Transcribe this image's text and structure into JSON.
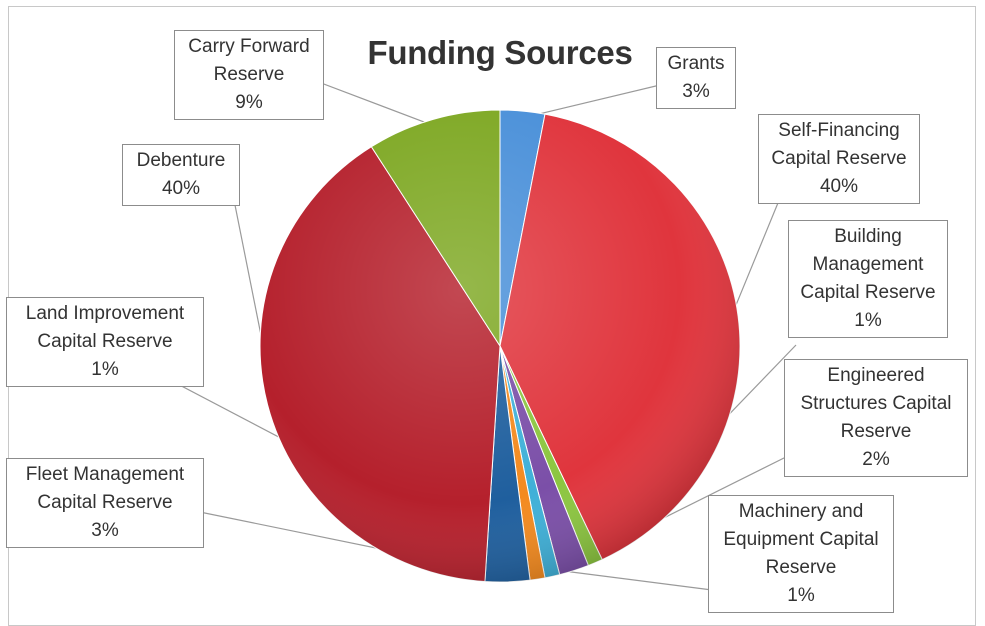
{
  "chart_data": {
    "type": "pie",
    "title": "Funding Sources",
    "slices": [
      {
        "key": "grants",
        "lines": [
          "Grants"
        ],
        "label": "3%",
        "value": 3,
        "color": "#4a90d9"
      },
      {
        "key": "self_financing",
        "lines": [
          "Self-Financing",
          "Capital Reserve"
        ],
        "label": "40%",
        "value": 40,
        "color": "#e0353d"
      },
      {
        "key": "building",
        "lines": [
          "Building",
          "Management",
          "Capital Reserve"
        ],
        "label": "1%",
        "value": 1,
        "color": "#8cc640"
      },
      {
        "key": "engineered",
        "lines": [
          "Engineered",
          "Structures Capital",
          "Reserve"
        ],
        "label": "2%",
        "value": 2,
        "color": "#7b4fa8"
      },
      {
        "key": "machinery",
        "lines": [
          "Machinery and",
          "Equipment Capital",
          "Reserve"
        ],
        "label": "1%",
        "value": 1,
        "color": "#3fb0d8"
      },
      {
        "key": "land",
        "lines": [
          "Land Improvement",
          "Capital Reserve"
        ],
        "label": "1%",
        "value": 1,
        "color": "#f38a1f"
      },
      {
        "key": "fleet",
        "lines": [
          "Fleet Management",
          "Capital Reserve"
        ],
        "label": "3%",
        "value": 3,
        "color": "#1f5f9e"
      },
      {
        "key": "debenture",
        "lines": [
          "Debenture"
        ],
        "label": "40%",
        "value": 40,
        "color": "#b5202c"
      },
      {
        "key": "carry_forward",
        "lines": [
          "Carry Forward",
          "Reserve"
        ],
        "label": "9%",
        "value": 9,
        "color": "#7ea823"
      }
    ]
  }
}
